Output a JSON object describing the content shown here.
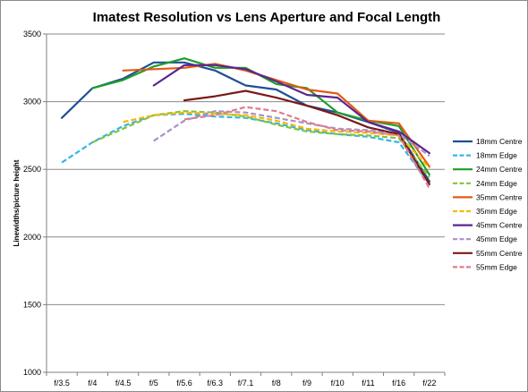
{
  "chart_data": {
    "type": "line",
    "title": "Imatest Resolution vs Lens Aperture and Focal Length",
    "xlabel": "",
    "ylabel": "Linewidths/picture height",
    "categories": [
      "f/3.5",
      "f/4",
      "f/4.5",
      "f/5",
      "f/5.6",
      "f/6.3",
      "f/7.1",
      "f/8",
      "f/9",
      "f/10",
      "f/11",
      "f/16",
      "f/22"
    ],
    "ylim": [
      1000,
      3500
    ],
    "yticks": [
      1000,
      1500,
      2000,
      2500,
      3000,
      3500
    ],
    "grid": "horizontal",
    "legend_position": "right",
    "series": [
      {
        "name": "18mm Centre",
        "color": "#1f4e96",
        "dash": false,
        "values": [
          2880,
          3100,
          3170,
          3290,
          3290,
          3230,
          3120,
          3090,
          2970,
          2920,
          2850,
          2770,
          2410
        ]
      },
      {
        "name": "18mm Edge",
        "color": "#33b5e8",
        "dash": true,
        "values": [
          2550,
          2700,
          2820,
          2900,
          2910,
          2890,
          2880,
          2840,
          2790,
          2760,
          2740,
          2700,
          2390
        ]
      },
      {
        "name": "24mm Centre",
        "color": "#1e9e28",
        "dash": false,
        "values": [
          null,
          3100,
          3160,
          3260,
          3320,
          3250,
          3250,
          3130,
          3100,
          2920,
          2860,
          2820,
          2460
        ]
      },
      {
        "name": "24mm Edge",
        "color": "#86c23a",
        "dash": true,
        "values": [
          null,
          2700,
          2800,
          2900,
          2930,
          2920,
          2890,
          2830,
          2780,
          2760,
          2750,
          2730,
          2440
        ]
      },
      {
        "name": "35mm Centre",
        "color": "#e35b12",
        "dash": false,
        "values": [
          null,
          null,
          3230,
          3240,
          3250,
          3280,
          3230,
          3160,
          3090,
          3060,
          2860,
          2840,
          2520
        ]
      },
      {
        "name": "35mm Edge",
        "color": "#f5b800",
        "dash": true,
        "values": [
          null,
          null,
          2850,
          2900,
          2920,
          2910,
          2900,
          2860,
          2800,
          2780,
          2770,
          2750,
          2510
        ]
      },
      {
        "name": "45mm Centre",
        "color": "#5b2590",
        "dash": false,
        "values": [
          null,
          null,
          null,
          3120,
          3270,
          3270,
          3240,
          3150,
          3050,
          3030,
          2850,
          2780,
          2620
        ]
      },
      {
        "name": "45mm Edge",
        "color": "#a990c9",
        "dash": true,
        "values": [
          null,
          null,
          null,
          2710,
          2860,
          2930,
          2920,
          2880,
          2840,
          2800,
          2790,
          2760,
          2600
        ]
      },
      {
        "name": "55mm Centre",
        "color": "#7a1a1a",
        "dash": false,
        "values": [
          null,
          null,
          null,
          null,
          3010,
          3040,
          3080,
          3030,
          2970,
          2900,
          2810,
          2760,
          2390
        ]
      },
      {
        "name": "55mm Edge",
        "color": "#e17b8a",
        "dash": true,
        "values": [
          null,
          null,
          null,
          null,
          2870,
          2900,
          2960,
          2930,
          2850,
          2790,
          2780,
          2750,
          2360
        ]
      }
    ]
  }
}
